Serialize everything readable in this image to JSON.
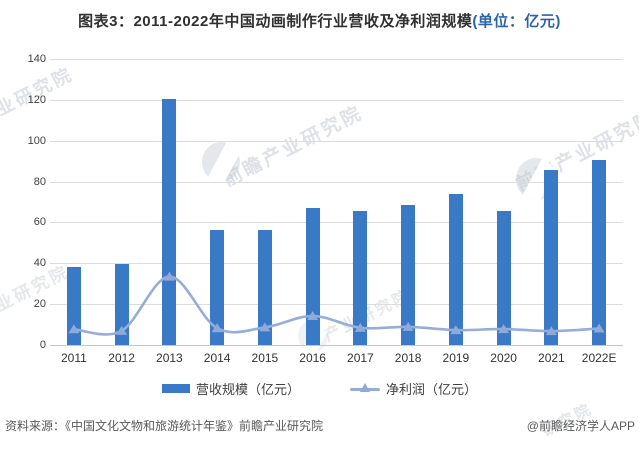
{
  "title": {
    "text": "图表3：2011-2022年中国动画制作行业营收及净利润规模",
    "unit": "(单位：亿元)"
  },
  "chart_data": {
    "type": "bar",
    "subtype": "bar-line-combo",
    "categories": [
      "2011",
      "2012",
      "2013",
      "2014",
      "2015",
      "2016",
      "2017",
      "2018",
      "2019",
      "2020",
      "2021",
      "2022E"
    ],
    "series": [
      {
        "name": "营收规模（亿元）",
        "type": "bar",
        "color": "#3a79c6",
        "values": [
          38.3,
          39.8,
          120.2,
          56.5,
          56.5,
          66.9,
          65.8,
          68.7,
          74.0,
          65.7,
          85.5,
          90.4
        ]
      },
      {
        "name": "净利润（亿元）",
        "type": "line",
        "color": "#96add9",
        "marker": "triangle-up",
        "marker_color": "#8fa9d8",
        "values": [
          7.7,
          6.9,
          33.5,
          8.2,
          8.6,
          14.2,
          8.4,
          8.9,
          7.3,
          7.8,
          6.8,
          8.1
        ]
      }
    ],
    "ylim": [
      0,
      140
    ],
    "yticks": [
      0,
      20,
      40,
      60,
      80,
      100,
      120,
      140
    ],
    "grid": "horizontal",
    "legend_position": "bottom"
  },
  "footer": {
    "source": "资料来源：《中国文化文物和旅游统计年鉴》前瞻产业研究院",
    "credit": "@前瞻经济学人APP"
  },
  "watermark": {
    "text_long": "前瞻产业研究院",
    "text_short": "产业研究院",
    "text_tail": "研究院",
    "logo": "qianzhan-logo"
  }
}
